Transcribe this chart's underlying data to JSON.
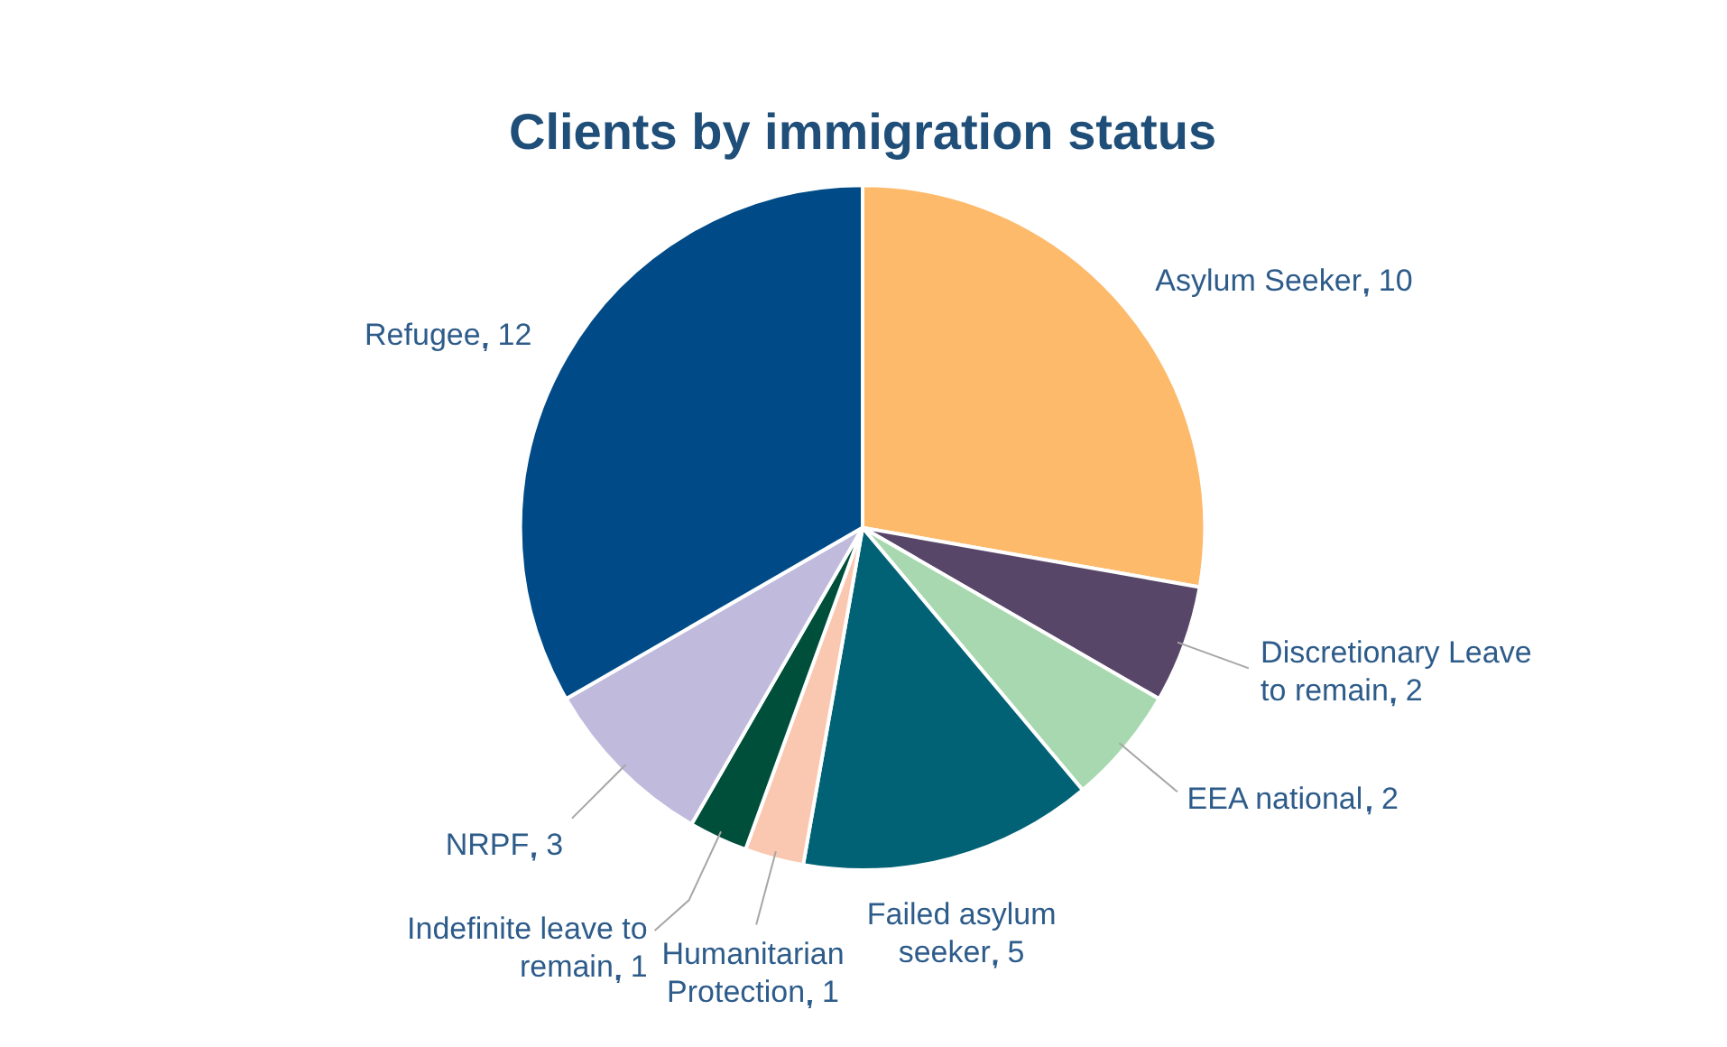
{
  "chart_data": {
    "type": "pie",
    "title": "Clients by immigration status",
    "categories": [
      "Asylum Seeker",
      "Discretionary Leave to remain",
      "EEA national",
      "Failed asylum seeker",
      "Humanitarian Protection",
      "Indefinite leave to remain",
      "NRPF",
      "Refugee"
    ],
    "values": [
      10,
      2,
      2,
      5,
      1,
      1,
      3,
      12
    ],
    "colors": [
      "#fdba6b",
      "#574668",
      "#a8d8b0",
      "#006274",
      "#fac8b0",
      "#004f3a",
      "#c0badd",
      "#004b87"
    ],
    "data_labels": true,
    "legend": false
  }
}
